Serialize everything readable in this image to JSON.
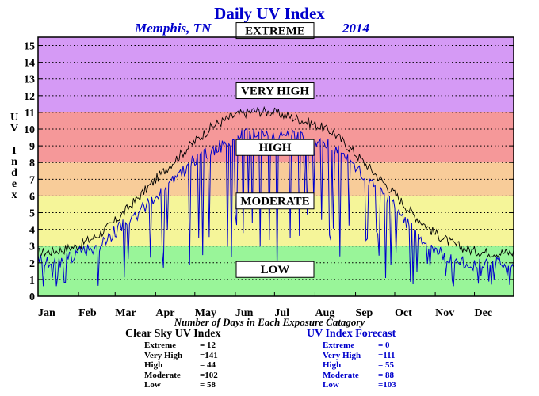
{
  "title": "Daily UV Index",
  "city": "Memphis, TN",
  "year": "2014",
  "ylabel_letters": [
    "U",
    "V",
    "",
    "I",
    "n",
    "d",
    "e",
    "x"
  ],
  "days_note": "Number of Days in Each Exposure Catagory",
  "colors": {
    "low": "#99f599",
    "moderate": "#f5f599",
    "high": "#f8cc99",
    "very_high": "#f59899",
    "extreme": "#d59af5",
    "clear_sky_line": "#000000",
    "forecast_line": "#0000cc",
    "title": "#0000cc"
  },
  "clear_sky": {
    "title": "Clear Sky UV Index",
    "rows": [
      {
        "label": "Extreme",
        "value": "= 12"
      },
      {
        "label": "Very High",
        "value": "=141"
      },
      {
        "label": "High",
        "value": "= 44"
      },
      {
        "label": "Moderate",
        "value": "=102"
      },
      {
        "label": "Low",
        "value": "= 58"
      }
    ]
  },
  "forecast": {
    "title": "UV Index Forecast",
    "rows": [
      {
        "label": "Extreme",
        "value": "=   0"
      },
      {
        "label": "Very High",
        "value": "=111"
      },
      {
        "label": "High",
        "value": "= 55"
      },
      {
        "label": "Moderate",
        "value": "= 88"
      },
      {
        "label": "Low",
        "value": "=103"
      }
    ]
  },
  "chart_data": {
    "type": "line",
    "ylim": [
      0,
      15.5
    ],
    "xlim": [
      1,
      365
    ],
    "yticks": [
      "0",
      "1",
      "2",
      "3",
      "4",
      "5",
      "6",
      "7",
      "8",
      "9",
      "10",
      "11",
      "12",
      "13",
      "14",
      "15"
    ],
    "xticks": [
      {
        "label": "Jan",
        "day": 1
      },
      {
        "label": "Feb",
        "day": 32
      },
      {
        "label": "Mar",
        "day": 60
      },
      {
        "label": "Apr",
        "day": 91
      },
      {
        "label": "May",
        "day": 121
      },
      {
        "label": "Jun",
        "day": 152
      },
      {
        "label": "Jul",
        "day": 182
      },
      {
        "label": "Aug",
        "day": 213
      },
      {
        "label": "Sep",
        "day": 244
      },
      {
        "label": "Oct",
        "day": 274
      },
      {
        "label": "Nov",
        "day": 305
      },
      {
        "label": "Dec",
        "day": 335
      }
    ],
    "grid": true,
    "bands": [
      {
        "name": "LOW",
        "from": 0,
        "to": 3,
        "label_y": 1.6
      },
      {
        "name": "MODERATE",
        "from": 3,
        "to": 6,
        "label_y": 5.7
      },
      {
        "name": "HIGH",
        "from": 6,
        "to": 8,
        "label_y": 8.9
      },
      {
        "name": "VERY HIGH",
        "from": 8,
        "to": 11,
        "label_y": 12.3
      },
      {
        "name": "EXTREME",
        "from": 11,
        "to": 15.5,
        "label_y": 15.9
      }
    ],
    "series": [
      {
        "name": "Clear Sky UV Index",
        "x": [
          1,
          15,
          31,
          46,
          59,
          74,
          90,
          105,
          120,
          135,
          151,
          166,
          181,
          196,
          212,
          227,
          243,
          258,
          273,
          288,
          304,
          319,
          334,
          349,
          365
        ],
        "y": [
          2.6,
          2.7,
          3.0,
          3.6,
          4.4,
          5.6,
          6.9,
          8.1,
          9.2,
          10.2,
          10.8,
          11.1,
          11.0,
          10.7,
          10.3,
          9.8,
          8.6,
          7.4,
          6.2,
          4.9,
          3.8,
          3.1,
          2.7,
          2.6,
          2.6
        ]
      },
      {
        "name": "UV Index Forecast",
        "x": [
          1,
          15,
          31,
          46,
          59,
          74,
          90,
          105,
          120,
          135,
          151,
          166,
          181,
          196,
          212,
          227,
          243,
          258,
          273,
          288,
          304,
          319,
          334,
          349,
          365
        ],
        "y": [
          2.3,
          2.0,
          2.6,
          3.0,
          3.9,
          4.8,
          6.0,
          7.0,
          8.2,
          8.8,
          9.5,
          9.9,
          9.7,
          9.6,
          9.5,
          9.0,
          8.0,
          6.6,
          5.6,
          4.0,
          2.8,
          2.4,
          1.9,
          2.0,
          2.1
        ]
      }
    ]
  }
}
